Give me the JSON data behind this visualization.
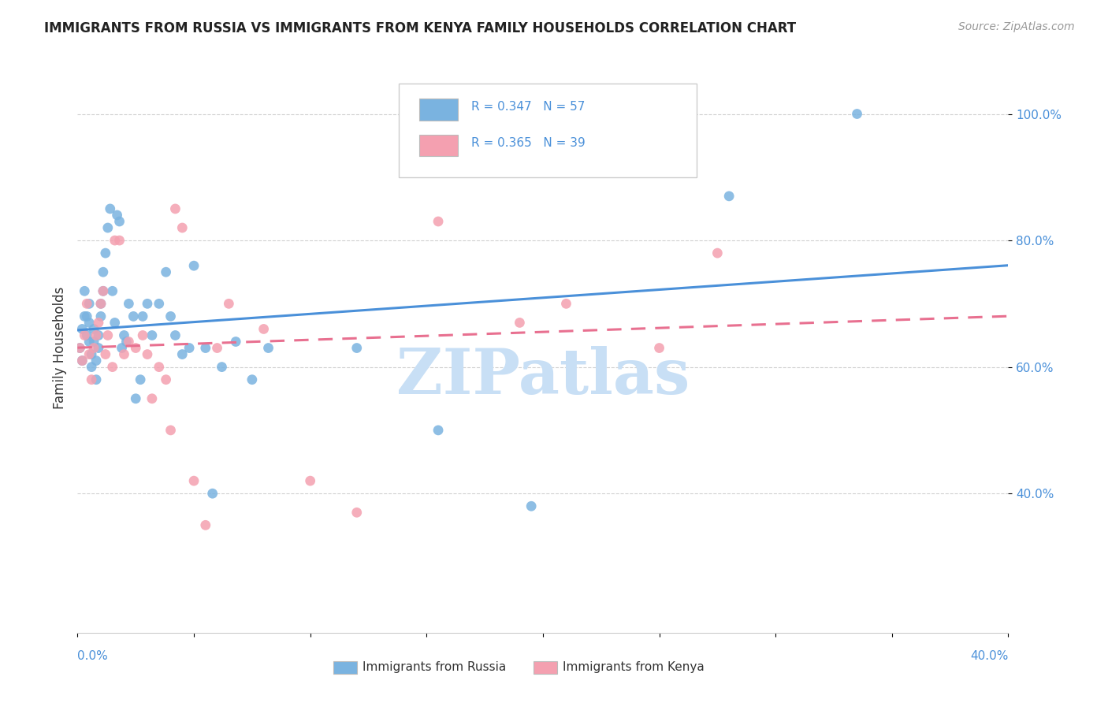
{
  "title": "IMMIGRANTS FROM RUSSIA VS IMMIGRANTS FROM KENYA FAMILY HOUSEHOLDS CORRELATION CHART",
  "source": "Source: ZipAtlas.com",
  "ylabel": "Family Households",
  "x_range": [
    0.0,
    0.4
  ],
  "y_range": [
    0.18,
    1.08
  ],
  "russia_R": 0.347,
  "russia_N": 57,
  "kenya_R": 0.365,
  "kenya_N": 39,
  "russia_color": "#7ab3e0",
  "kenya_color": "#f4a0b0",
  "russia_line_color": "#4a90d9",
  "kenya_line_color": "#e87090",
  "watermark": "ZIPatlas",
  "watermark_color": "#c8dff5",
  "russia_x": [
    0.001,
    0.002,
    0.002,
    0.003,
    0.003,
    0.004,
    0.004,
    0.005,
    0.005,
    0.005,
    0.006,
    0.006,
    0.007,
    0.007,
    0.008,
    0.008,
    0.009,
    0.009,
    0.01,
    0.01,
    0.011,
    0.011,
    0.012,
    0.013,
    0.014,
    0.015,
    0.016,
    0.017,
    0.018,
    0.019,
    0.02,
    0.021,
    0.022,
    0.024,
    0.025,
    0.027,
    0.028,
    0.03,
    0.032,
    0.035,
    0.038,
    0.04,
    0.042,
    0.045,
    0.048,
    0.05,
    0.055,
    0.058,
    0.062,
    0.068,
    0.075,
    0.082,
    0.12,
    0.155,
    0.195,
    0.28,
    0.335
  ],
  "russia_y": [
    0.63,
    0.61,
    0.66,
    0.68,
    0.72,
    0.65,
    0.68,
    0.64,
    0.67,
    0.7,
    0.6,
    0.62,
    0.64,
    0.66,
    0.58,
    0.61,
    0.63,
    0.65,
    0.68,
    0.7,
    0.72,
    0.75,
    0.78,
    0.82,
    0.85,
    0.72,
    0.67,
    0.84,
    0.83,
    0.63,
    0.65,
    0.64,
    0.7,
    0.68,
    0.55,
    0.58,
    0.68,
    0.7,
    0.65,
    0.7,
    0.75,
    0.68,
    0.65,
    0.62,
    0.63,
    0.76,
    0.63,
    0.4,
    0.6,
    0.64,
    0.58,
    0.63,
    0.63,
    0.5,
    0.38,
    0.87,
    1.0
  ],
  "kenya_x": [
    0.001,
    0.002,
    0.003,
    0.004,
    0.005,
    0.006,
    0.007,
    0.008,
    0.009,
    0.01,
    0.011,
    0.012,
    0.013,
    0.015,
    0.016,
    0.018,
    0.02,
    0.022,
    0.025,
    0.028,
    0.03,
    0.032,
    0.035,
    0.038,
    0.04,
    0.042,
    0.045,
    0.05,
    0.055,
    0.06,
    0.065,
    0.08,
    0.1,
    0.12,
    0.155,
    0.19,
    0.21,
    0.25,
    0.275
  ],
  "kenya_y": [
    0.63,
    0.61,
    0.65,
    0.7,
    0.62,
    0.58,
    0.63,
    0.65,
    0.67,
    0.7,
    0.72,
    0.62,
    0.65,
    0.6,
    0.8,
    0.8,
    0.62,
    0.64,
    0.63,
    0.65,
    0.62,
    0.55,
    0.6,
    0.58,
    0.5,
    0.85,
    0.82,
    0.42,
    0.35,
    0.63,
    0.7,
    0.66,
    0.42,
    0.37,
    0.83,
    0.67,
    0.7,
    0.63,
    0.78
  ]
}
